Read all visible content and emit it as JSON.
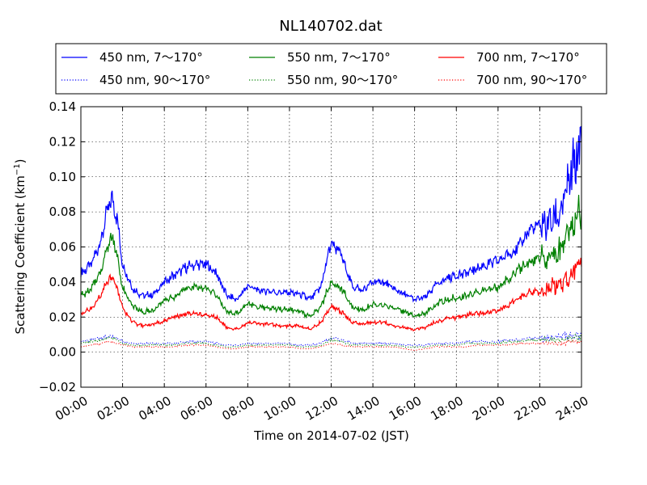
{
  "chart_data": {
    "type": "line",
    "title": "NL140702.dat",
    "xlabel": "Time on 2014-07-02 (JST)",
    "ylabel_main": "Scattering Coefficient (km",
    "ylabel_sup": "−1",
    "ylabel_tail": ")",
    "xlim": [
      "00:00",
      "24:00"
    ],
    "ylim": [
      -0.02,
      0.14
    ],
    "xticks": [
      "00:00",
      "02:00",
      "04:00",
      "06:00",
      "08:00",
      "10:00",
      "12:00",
      "14:00",
      "16:00",
      "18:00",
      "20:00",
      "22:00",
      "24:00"
    ],
    "yticks": [
      "−0.02",
      "0.00",
      "0.02",
      "0.04",
      "0.06",
      "0.08",
      "0.10",
      "0.12",
      "0.14"
    ],
    "grid": true,
    "legend_position": "top",
    "x_hours": [
      0,
      0.5,
      1,
      1.25,
      1.5,
      1.75,
      2,
      2.5,
      3,
      3.5,
      4,
      4.5,
      5,
      5.5,
      6,
      6.5,
      7,
      7.5,
      8,
      8.5,
      9,
      9.5,
      10,
      10.5,
      11,
      11.5,
      12,
      12.5,
      13,
      13.5,
      14,
      14.5,
      15,
      15.5,
      16,
      16.5,
      17,
      17.5,
      18,
      18.5,
      19,
      19.5,
      20,
      20.5,
      21,
      21.5,
      22,
      22.5,
      23,
      23.5,
      24
    ],
    "series": [
      {
        "name": "450 nm, 7～170°",
        "color": "#0000ff",
        "style": "solid",
        "values": [
          0.045,
          0.05,
          0.065,
          0.08,
          0.088,
          0.075,
          0.05,
          0.036,
          0.032,
          0.033,
          0.04,
          0.044,
          0.048,
          0.05,
          0.05,
          0.045,
          0.032,
          0.03,
          0.038,
          0.035,
          0.035,
          0.034,
          0.034,
          0.033,
          0.03,
          0.037,
          0.063,
          0.055,
          0.038,
          0.035,
          0.04,
          0.04,
          0.036,
          0.033,
          0.03,
          0.031,
          0.038,
          0.042,
          0.044,
          0.045,
          0.048,
          0.05,
          0.052,
          0.056,
          0.06,
          0.07,
          0.072,
          0.074,
          0.08,
          0.1,
          0.12
        ]
      },
      {
        "name": "550 nm, 7～170°",
        "color": "#008000",
        "style": "solid",
        "values": [
          0.032,
          0.036,
          0.048,
          0.06,
          0.066,
          0.055,
          0.037,
          0.026,
          0.023,
          0.024,
          0.029,
          0.032,
          0.036,
          0.037,
          0.036,
          0.033,
          0.023,
          0.022,
          0.028,
          0.026,
          0.025,
          0.025,
          0.024,
          0.023,
          0.02,
          0.026,
          0.04,
          0.036,
          0.026,
          0.024,
          0.027,
          0.027,
          0.025,
          0.023,
          0.021,
          0.022,
          0.027,
          0.03,
          0.031,
          0.032,
          0.034,
          0.036,
          0.037,
          0.042,
          0.047,
          0.052,
          0.053,
          0.054,
          0.058,
          0.072,
          0.085
        ]
      },
      {
        "name": "700 nm, 7～170°",
        "color": "#ff0000",
        "style": "solid",
        "values": [
          0.022,
          0.025,
          0.033,
          0.04,
          0.043,
          0.036,
          0.025,
          0.017,
          0.015,
          0.016,
          0.018,
          0.02,
          0.022,
          0.022,
          0.021,
          0.02,
          0.014,
          0.013,
          0.017,
          0.016,
          0.016,
          0.015,
          0.015,
          0.015,
          0.013,
          0.017,
          0.026,
          0.023,
          0.017,
          0.016,
          0.017,
          0.017,
          0.015,
          0.014,
          0.013,
          0.014,
          0.017,
          0.019,
          0.02,
          0.021,
          0.022,
          0.023,
          0.024,
          0.027,
          0.031,
          0.034,
          0.035,
          0.036,
          0.04,
          0.045,
          0.055
        ]
      },
      {
        "name": "450 nm, 90～170°",
        "color": "#0000ff",
        "style": "dotted",
        "values": [
          0.006,
          0.007,
          0.008,
          0.009,
          0.009,
          0.008,
          0.006,
          0.005,
          0.005,
          0.005,
          0.005,
          0.005,
          0.006,
          0.006,
          0.006,
          0.005,
          0.004,
          0.004,
          0.005,
          0.005,
          0.005,
          0.005,
          0.005,
          0.004,
          0.004,
          0.005,
          0.008,
          0.007,
          0.005,
          0.005,
          0.005,
          0.005,
          0.005,
          0.004,
          0.004,
          0.004,
          0.005,
          0.005,
          0.005,
          0.006,
          0.006,
          0.006,
          0.006,
          0.007,
          0.007,
          0.008,
          0.008,
          0.008,
          0.009,
          0.009,
          0.01
        ]
      },
      {
        "name": "550 nm, 90～170°",
        "color": "#008000",
        "style": "dotted",
        "values": [
          0.005,
          0.006,
          0.007,
          0.008,
          0.008,
          0.007,
          0.005,
          0.004,
          0.004,
          0.004,
          0.004,
          0.004,
          0.005,
          0.005,
          0.005,
          0.004,
          0.003,
          0.003,
          0.004,
          0.004,
          0.004,
          0.004,
          0.004,
          0.003,
          0.003,
          0.004,
          0.007,
          0.006,
          0.004,
          0.004,
          0.004,
          0.004,
          0.004,
          0.003,
          0.003,
          0.003,
          0.004,
          0.004,
          0.004,
          0.005,
          0.005,
          0.005,
          0.005,
          0.006,
          0.006,
          0.007,
          0.007,
          0.007,
          0.007,
          0.008,
          0.008
        ]
      },
      {
        "name": "700 nm, 90～170°",
        "color": "#ff0000",
        "style": "dotted",
        "values": [
          0.003,
          0.004,
          0.005,
          0.006,
          0.006,
          0.005,
          0.004,
          0.003,
          0.003,
          0.003,
          0.003,
          0.003,
          0.004,
          0.004,
          0.004,
          0.003,
          0.002,
          0.002,
          0.003,
          0.003,
          0.003,
          0.003,
          0.003,
          0.002,
          0.002,
          0.003,
          0.005,
          0.004,
          0.003,
          0.003,
          0.003,
          0.003,
          0.003,
          0.002,
          0.001,
          0.002,
          0.003,
          0.003,
          0.003,
          0.003,
          0.004,
          0.004,
          0.004,
          0.004,
          0.005,
          0.005,
          0.005,
          0.005,
          0.005,
          0.006,
          0.006
        ]
      }
    ]
  }
}
